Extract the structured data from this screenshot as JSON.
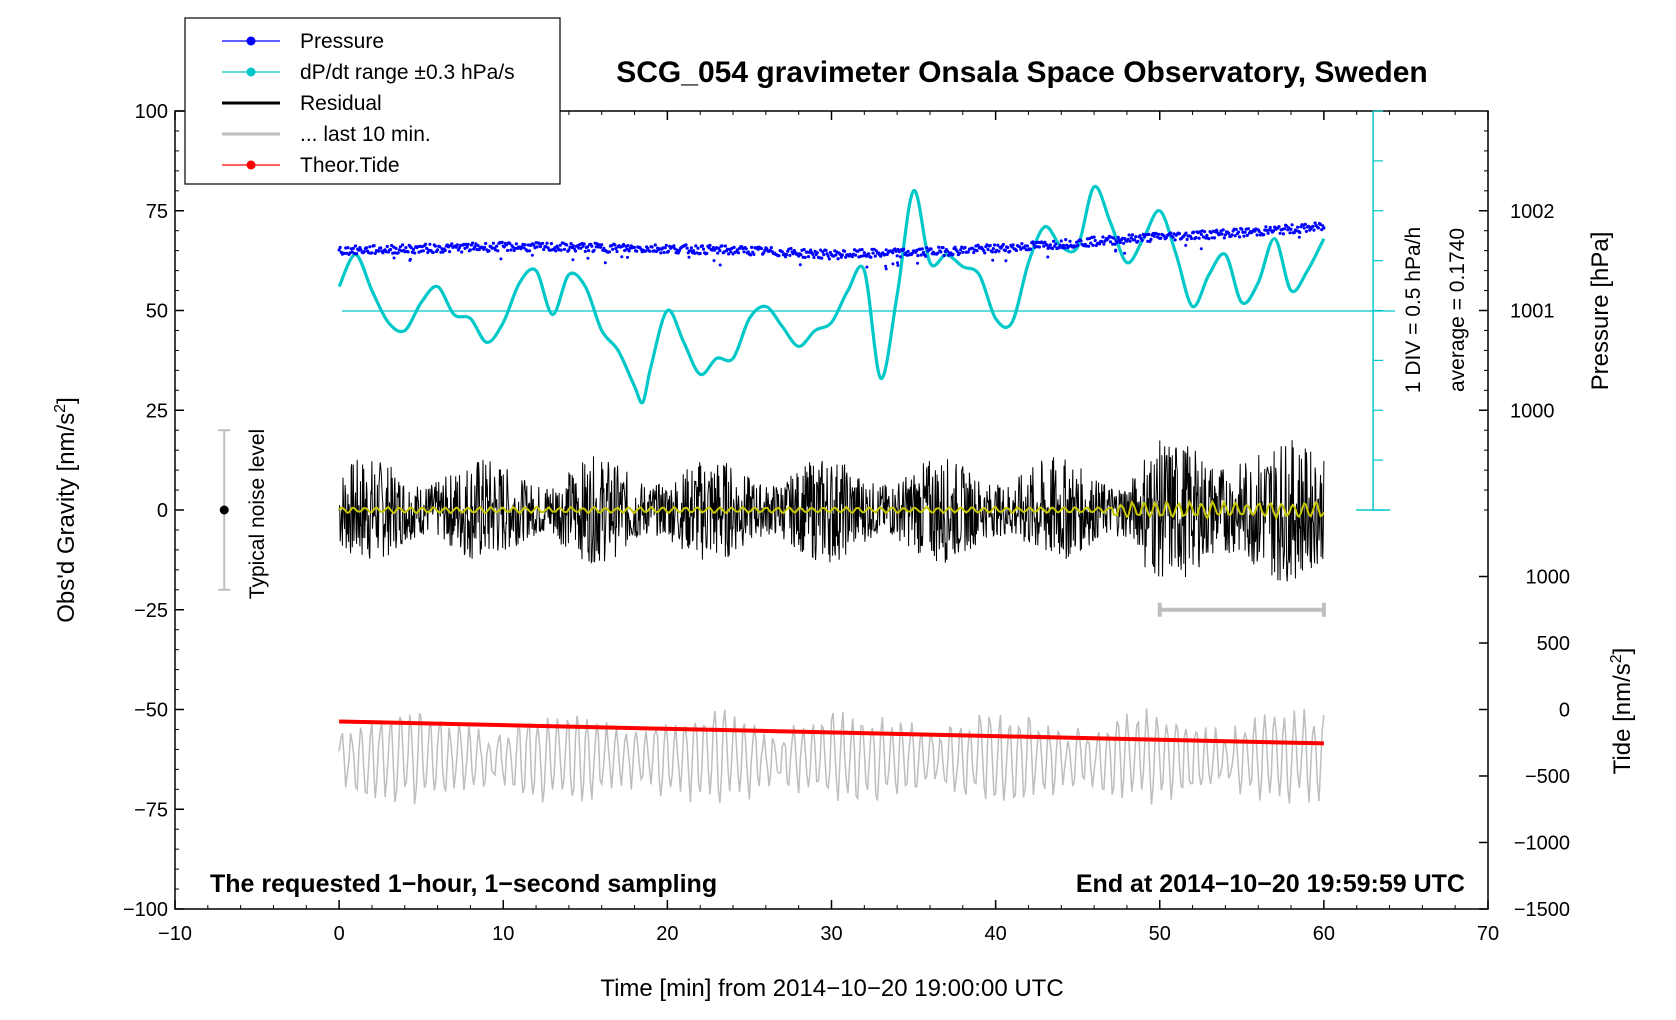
{
  "chart_data": {
    "type": "line",
    "title": "SCG_054 gravimeter Onsala Space Observatory, Sweden",
    "xlabel": "Time [min] from 2014−10−20 19:00:00 UTC",
    "ylabel_left": "Obs'd Gravity [nm/s",
    "ylabel_left_sup": "2",
    "ylabel_left_end": "]",
    "ylabel_right_pressure": "Pressure [hPa]",
    "ylabel_right_tide": "Tide [nm/s",
    "ylabel_right_tide_sup": "2",
    "ylabel_right_tide_end": "]",
    "xlim": [
      -10,
      70
    ],
    "ylim": [
      -100,
      100
    ],
    "x_ticks": [
      "−10",
      "0",
      "10",
      "20",
      "30",
      "40",
      "50",
      "60",
      "70"
    ],
    "x_tick_values": [
      -10,
      0,
      10,
      20,
      30,
      40,
      50,
      60,
      70
    ],
    "y_ticks": [
      "100",
      "75",
      "50",
      "25",
      "0",
      "−25",
      "−50",
      "−75",
      "−100"
    ],
    "y_tick_values": [
      100,
      75,
      50,
      25,
      0,
      -25,
      -50,
      -75,
      -100
    ],
    "pressure_ticks": [
      "1002",
      "1001",
      "1000"
    ],
    "pressure_tick_values": [
      1002,
      1001,
      1000
    ],
    "pressure_axis": {
      "gravity_at_1000": 25,
      "gravity_per_hPa": 25
    },
    "tide_ticks": [
      "1000",
      "500",
      "0",
      "−500",
      "−1000",
      "−1500"
    ],
    "tide_tick_values": [
      1000,
      500,
      0,
      -500,
      -1000,
      -1500
    ],
    "tide_axis": {
      "gravity_at_0": -50,
      "gravity_per_1000": 33.33
    },
    "legend": [
      {
        "label": "Pressure",
        "color": "#0000ff",
        "marker": true
      },
      {
        "label": "dP/dt range ±0.3 hPa/s",
        "color": "#00c8c8",
        "marker": true
      },
      {
        "label": "Residual",
        "color": "#000000",
        "marker": false
      },
      {
        "label": "... last 10 min.",
        "color": "#bebebe",
        "marker": false
      },
      {
        "label": "Theor.Tide",
        "color": "#ff0000",
        "marker": true
      }
    ],
    "noise_level": {
      "label": "Typical noise level",
      "x": -7,
      "low": -20,
      "high": 20,
      "center": 0
    },
    "dpdt_scale": {
      "label": "1 DIV = 0.5 hPa/h",
      "average": "average = 0.1740",
      "baseline": 50,
      "x": 63,
      "top": 100,
      "bottom": 0
    },
    "last10_bracket": {
      "x_start": 50,
      "x_end": 60,
      "y": -25
    },
    "note_left": "The requested 1−hour, 1−second sampling",
    "note_right": "End at 2014−10−20 19:59:59 UTC",
    "series": [
      {
        "name": "Pressure",
        "color": "#0000ff",
        "x": [
          0,
          5,
          10,
          15,
          20,
          25,
          30,
          35,
          40,
          45,
          50,
          55,
          60
        ],
        "y": [
          65,
          65.5,
          66,
          65.8,
          65.5,
          65,
          64,
          64.5,
          65.5,
          67,
          68.5,
          69.5,
          71
        ]
      },
      {
        "name": "dP/dt",
        "color": "#00c8c8",
        "x": [
          0,
          1,
          2,
          3,
          4,
          5,
          6,
          7,
          8,
          9,
          10,
          11,
          12,
          13,
          14,
          15,
          16,
          17,
          18,
          18.5,
          19,
          20,
          21,
          22,
          23,
          24,
          25,
          26,
          27,
          28,
          29,
          30,
          31,
          32,
          33,
          34,
          35,
          36,
          37,
          38,
          39,
          40,
          41,
          42,
          43,
          44,
          45,
          46,
          47,
          48,
          49,
          50,
          51,
          52,
          53,
          54,
          55,
          56,
          57,
          58,
          59,
          60
        ],
        "y": [
          56,
          64,
          55,
          47,
          45,
          52,
          56,
          49,
          48,
          42,
          47,
          57,
          60,
          49,
          59,
          56,
          45,
          40,
          31,
          27,
          36,
          50,
          42,
          34,
          38,
          38,
          48,
          51,
          46,
          41,
          45,
          47,
          55,
          60,
          33,
          54,
          80,
          62,
          64,
          61,
          59,
          48,
          47,
          62,
          71,
          66,
          66,
          81,
          72,
          62,
          68,
          75,
          64,
          51,
          59,
          64,
          52,
          57,
          68,
          55,
          60,
          68
        ]
      },
      {
        "name": "Residual",
        "color": "#000000",
        "amplitude": 10
      },
      {
        "name": "Residual smoothed",
        "color": "#c8c800",
        "amplitude": 1
      },
      {
        "name": "... last 10 min.",
        "color": "#bebebe",
        "offset": -62,
        "amplitude": 10
      },
      {
        "name": "Theor.Tide",
        "color": "#ff0000",
        "x": [
          0,
          60
        ],
        "y": [
          -53,
          -58.5
        ]
      }
    ]
  }
}
